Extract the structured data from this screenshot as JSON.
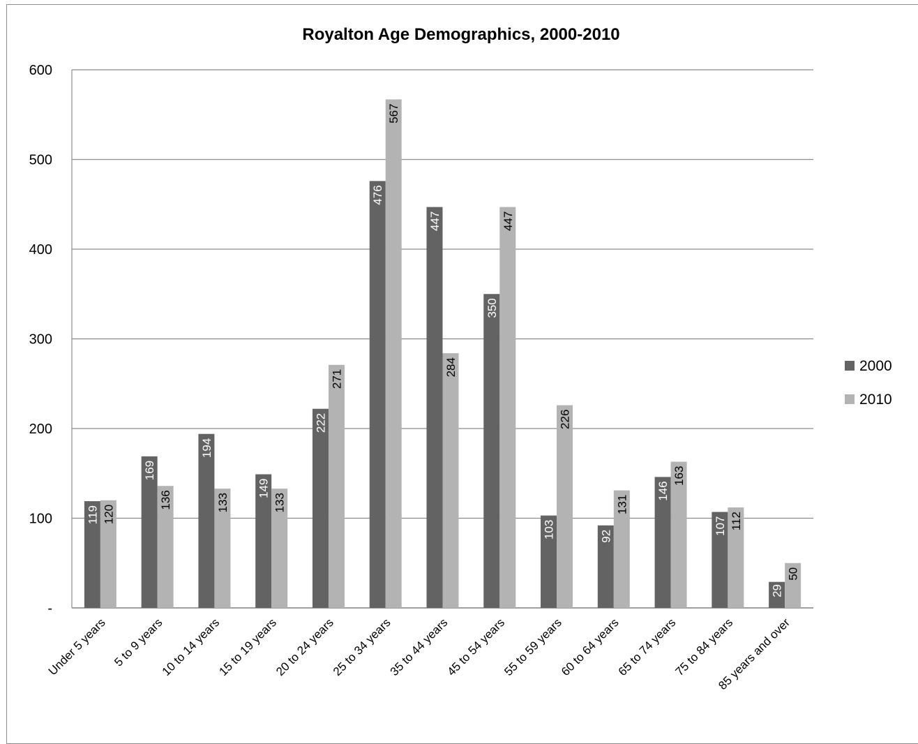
{
  "chart_data": {
    "type": "bar",
    "title": "Royalton Age Demographics, 2000-2010",
    "xlabel": "",
    "ylabel": "",
    "ylim": [
      0,
      600
    ],
    "yticks": [
      0,
      100,
      200,
      300,
      400,
      500,
      600
    ],
    "ytick_labels": [
      "-",
      "100",
      "200",
      "300",
      "400",
      "500",
      "600"
    ],
    "grid": true,
    "legend_position": "right",
    "categories": [
      "Under 5 years",
      "5 to 9 years",
      "10 to 14 years",
      "15 to 19 years",
      "20 to 24 years",
      "25 to 34 years",
      "35 to 44 years",
      "45 to 54 years",
      "55 to 59 years",
      "60 to 64 years",
      "65 to 74 years",
      "75 to 84 years",
      "85 years and over"
    ],
    "series": [
      {
        "name": "2000",
        "color": "#636363",
        "label_color": "#ffffff",
        "values": [
          119,
          169,
          194,
          149,
          222,
          476,
          447,
          350,
          103,
          92,
          146,
          107,
          29
        ]
      },
      {
        "name": "2010",
        "color": "#b3b3b3",
        "label_color": "#000000",
        "values": [
          120,
          136,
          133,
          133,
          271,
          567,
          284,
          447,
          226,
          131,
          163,
          112,
          50
        ]
      }
    ]
  }
}
